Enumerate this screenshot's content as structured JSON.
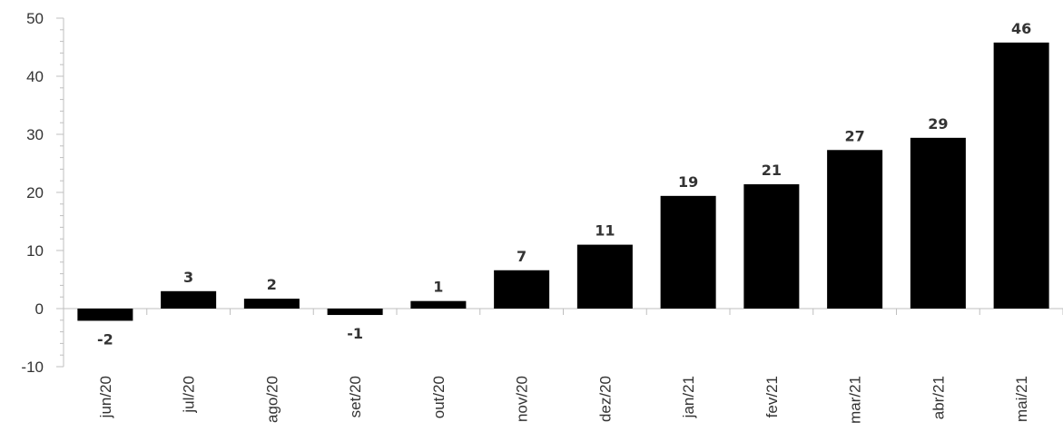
{
  "chart_data": {
    "type": "bar",
    "categories": [
      "jun/20",
      "jul/20",
      "ago/20",
      "set/20",
      "out/20",
      "nov/20",
      "dez/20",
      "jan/21",
      "fev/21",
      "mar/21",
      "abr/21",
      "mai/21"
    ],
    "values": [
      -2.1,
      3.0,
      1.7,
      -1.1,
      1.3,
      6.6,
      11.0,
      19.4,
      21.4,
      27.3,
      29.4,
      45.8
    ],
    "data_labels": [
      "-2",
      "3",
      "2",
      "-1",
      "1",
      "7",
      "11",
      "19",
      "21",
      "27",
      "29",
      "46"
    ],
    "y_ticks": [
      "-10",
      "0",
      "10",
      "20",
      "30",
      "40",
      "50"
    ],
    "ylim": [
      -10,
      50
    ],
    "bar_color": "#000000",
    "axis_color": "#bfbfbf",
    "grid": false,
    "legend": "none"
  }
}
